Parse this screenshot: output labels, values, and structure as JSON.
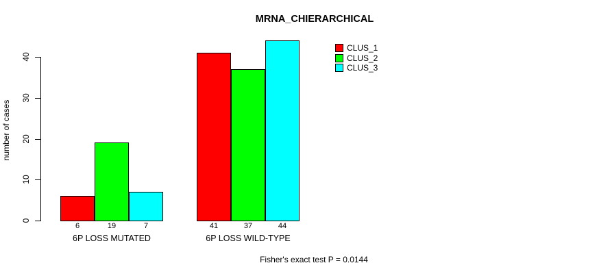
{
  "chart_data": {
    "type": "bar",
    "title": "MRNA_CHIERARCHICAL",
    "xlabel": "",
    "ylabel": "number of cases",
    "ylim": [
      0,
      40
    ],
    "yticks": [
      0,
      10,
      20,
      30,
      40
    ],
    "grid": false,
    "legend_position": "top-right",
    "categories": [
      "6P LOSS MUTATED",
      "6P LOSS WILD-TYPE"
    ],
    "series": [
      {
        "name": "CLUS_1",
        "color": "#FF0000",
        "values": [
          6,
          41
        ]
      },
      {
        "name": "CLUS_2",
        "color": "#00FF00",
        "values": [
          19,
          37
        ]
      },
      {
        "name": "CLUS_3",
        "color": "#00FFFF",
        "values": [
          7,
          44
        ]
      }
    ],
    "bar_value_labels": [
      [
        6,
        19,
        7
      ],
      [
        41,
        37,
        44
      ]
    ],
    "annotation": "Fisher's exact test P = 0.0144",
    "axis_color": "#000000",
    "background_color": "#FFFFFF"
  }
}
